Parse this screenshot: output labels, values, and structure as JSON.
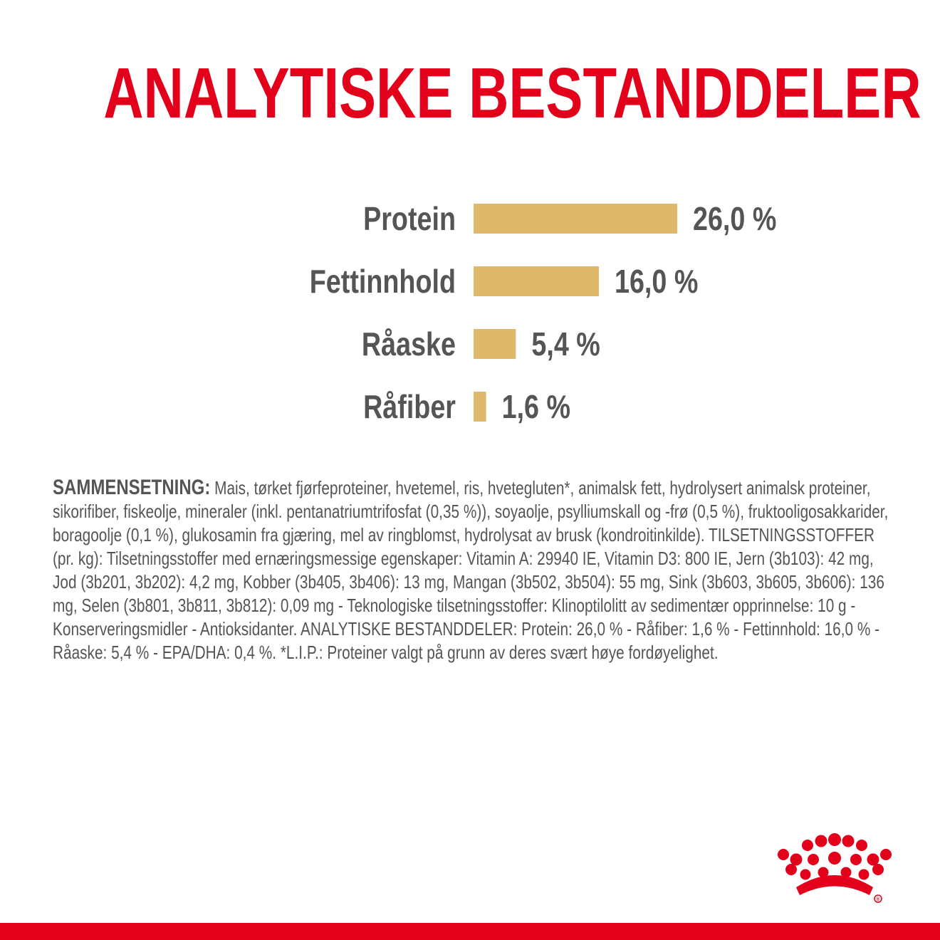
{
  "title": "ANALYTISKE BESTANDDELER",
  "colors": {
    "brand_red": "#e2001a",
    "bar": "#deb86b",
    "text": "#555555"
  },
  "chart_data": {
    "type": "bar",
    "orientation": "horizontal",
    "categories": [
      "Protein",
      "Fettinnhold",
      "Råaske",
      "Råfiber"
    ],
    "values": [
      26.0,
      16.0,
      5.4,
      1.6
    ],
    "value_labels": [
      "26,0 %",
      "16,0 %",
      "5,4 %",
      "1,6 %"
    ],
    "unit": "%",
    "title": "",
    "xlabel": "",
    "ylabel": "",
    "grid": false
  },
  "composition": {
    "lead": "SAMMENSETNING:",
    "text": " Mais, tørket fjørfeproteiner, hvetemel, ris, hvetegluten*, animalsk fett, hydrolysert animalsk proteiner, sikorifiber, fiskeolje, mineraler (inkl. pentanatriumtrifosfat (0,35 %)), soyaolje, psylliumskall og -frø (0,5 %), fruktooligosakkarider, boragoolje (0,1 %), glukosamin fra gjæring, mel av ringblomst, hydrolysat av brusk (kondroitinkilde). TILSETNINGSSTOFFER (pr. kg): Tilsetningsstoffer med ernæringsmessige egenskaper: Vitamin A: 29940 IE, Vitamin D3: 800 IE, Jern (3b103): 42 mg, Jod (3b201, 3b202): 4,2 mg, Kobber (3b405, 3b406): 13 mg, Mangan (3b502, 3b504): 55 mg, Sink (3b603, 3b605, 3b606): 136 mg, Selen (3b801, 3b811, 3b812): 0,09 mg - Teknologiske tilsetningsstoffer: Klinoptilolitt av sedimentær opprinnelse: 10 g - Konserveringsmidler - Antioksidanter. ANALYTISKE BESTANDDELER: Protein: 26,0 % - Råfiber: 1,6 % - Fettinnhold: 16,0 % - Råaske: 5,4 % - EPA/DHA: 0,4 %. *L.I.P.: Proteiner valgt på grunn av deres svært høye fordøyelighet."
  },
  "logo": {
    "icon": "crown-icon",
    "registered_mark": "®"
  }
}
